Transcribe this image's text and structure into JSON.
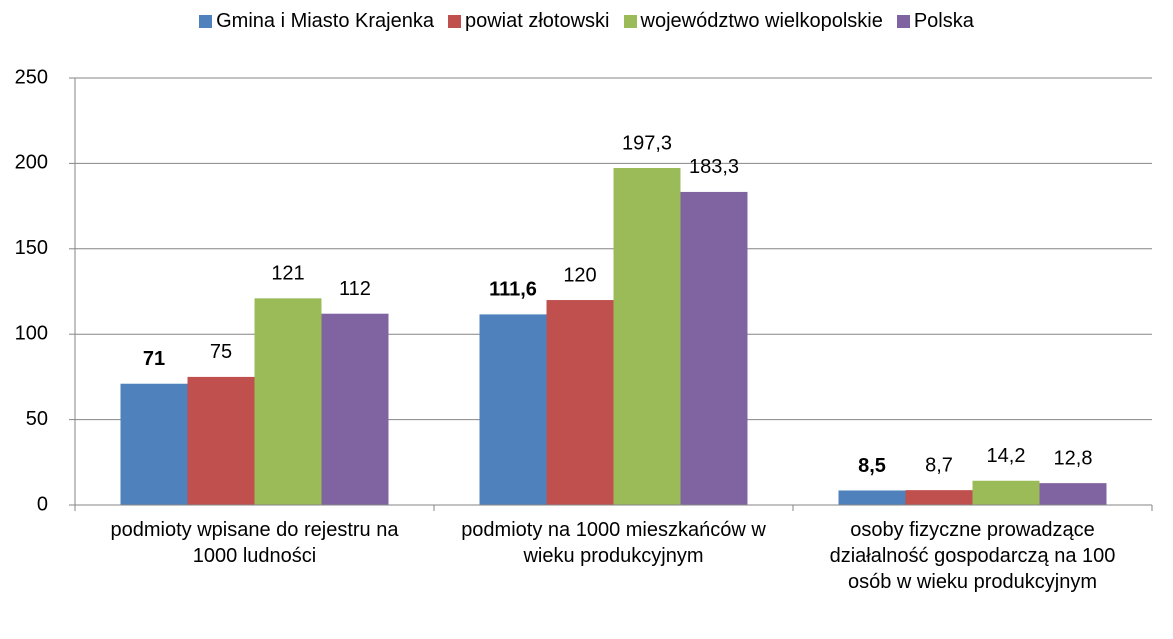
{
  "chart_data": {
    "type": "bar",
    "categories": [
      "podmioty wpisane do rejestru na 1000 ludności",
      "podmioty na 1000 mieszkańców w wieku produkcyjnym",
      "osoby fizyczne prowadzące działalność gospodarczą na 100 osób w wieku produkcyjnym"
    ],
    "series": [
      {
        "name": "Gmina i Miasto Krajenka",
        "color": "#4f81bd",
        "values": [
          71,
          111.6,
          8.5
        ],
        "value_labels": [
          "71",
          "111,6",
          "8,5"
        ]
      },
      {
        "name": "powiat złotowski",
        "color": "#c0504d",
        "values": [
          75,
          120,
          8.7
        ],
        "value_labels": [
          "75",
          "120",
          "8,7"
        ]
      },
      {
        "name": "województwo wielkopolskie",
        "color": "#9bbb59",
        "values": [
          121,
          197.3,
          14.2
        ],
        "value_labels": [
          "121",
          "197,3",
          "14,2"
        ]
      },
      {
        "name": "Polska",
        "color": "#8064a2",
        "values": [
          112,
          183.3,
          12.8
        ],
        "value_labels": [
          "112",
          "183,3",
          "12,8"
        ]
      }
    ],
    "ylim": [
      0,
      250
    ],
    "yticks": [
      0,
      50,
      100,
      150,
      200,
      250
    ],
    "grid": true,
    "legend": "top"
  }
}
